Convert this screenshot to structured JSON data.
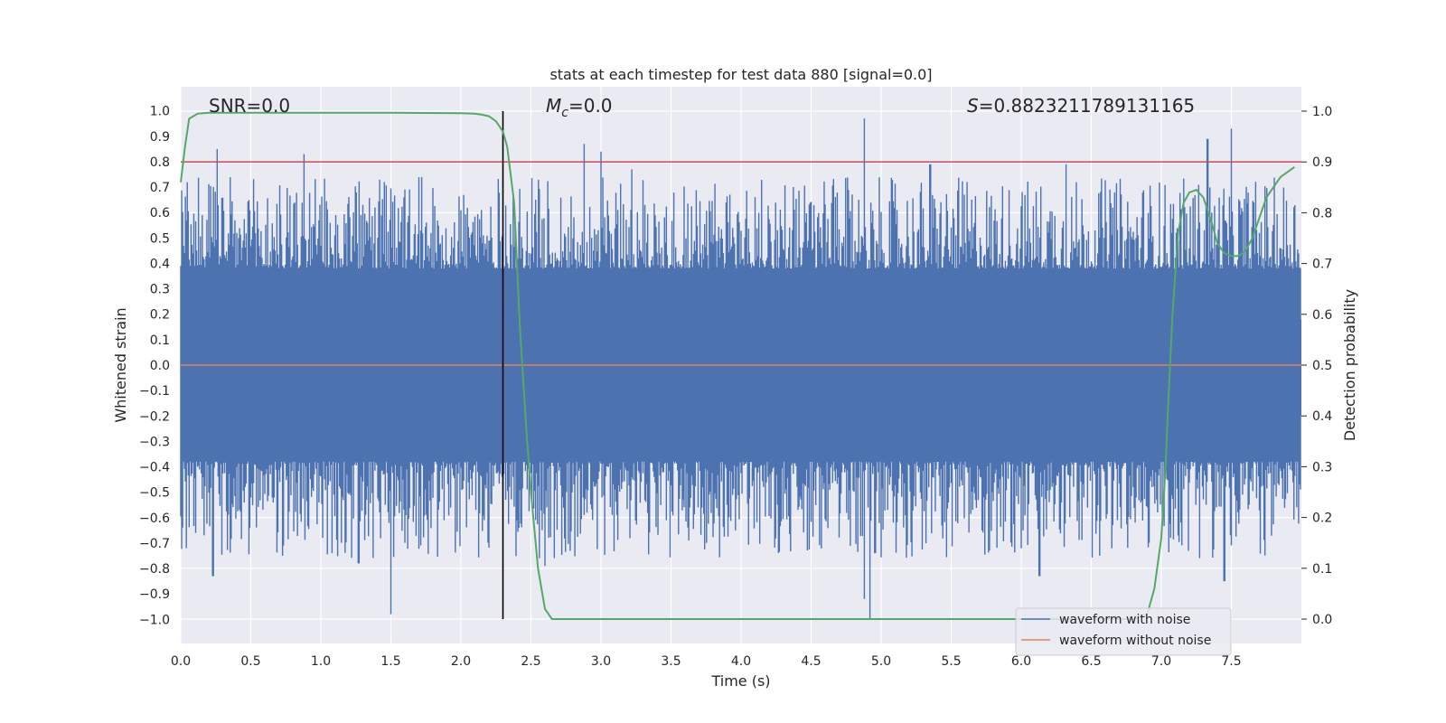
{
  "chart_data": {
    "type": "line",
    "title": "stats at each timestep for test data 880 [signal=0.0]",
    "xlabel": "Time (s)",
    "ylabel": "Whitened strain",
    "y2label": "Detection probability",
    "xlim": [
      0.0,
      8.0
    ],
    "ylim": [
      -1.095,
      1.095
    ],
    "y2lim": [
      -0.048,
      1.048
    ],
    "x_ticks": [
      "0.0",
      "0.5",
      "1.0",
      "1.5",
      "2.0",
      "2.5",
      "3.0",
      "3.5",
      "4.0",
      "4.5",
      "5.0",
      "5.5",
      "6.0",
      "6.5",
      "7.0",
      "7.5"
    ],
    "y_ticks": [
      "1.0",
      "0.9",
      "0.8",
      "0.7",
      "0.6",
      "0.5",
      "0.4",
      "0.3",
      "0.2",
      "0.1",
      "0.0",
      "−0.1",
      "−0.2",
      "−0.3",
      "−0.4",
      "−0.5",
      "−0.6",
      "−0.7",
      "−0.8",
      "−0.9",
      "−1.0"
    ],
    "y2_ticks": [
      "1.0",
      "0.9",
      "0.8",
      "0.7",
      "0.6",
      "0.5",
      "0.4",
      "0.3",
      "0.2",
      "0.1",
      "0.0"
    ],
    "grid": true,
    "legend_position": "lower-right",
    "annotations": {
      "snr": "SNR=0.0",
      "mc_symbol": "M",
      "mc_sub": "c",
      "mc_value": "=0.0",
      "s_symbol": "S",
      "s_value": "=0.8823211789131165"
    },
    "marker_time": 2.3,
    "threshold": 0.9,
    "series": [
      {
        "name": "waveform with noise",
        "color": "#4c72b0",
        "envelope": {
          "noise_floor": 0.38,
          "tall_peaks": [
            [
              0.26,
              0.85
            ],
            [
              0.88,
              0.83
            ],
            [
              2.88,
              0.87
            ],
            [
              3.0,
              0.84
            ],
            [
              4.88,
              0.97
            ],
            [
              7.33,
              0.89
            ],
            [
              7.5,
              0.93
            ],
            [
              3.22,
              0.77
            ],
            [
              5.35,
              0.79
            ],
            [
              6.32,
              0.79
            ]
          ],
          "deep_troughs": [
            [
              1.5,
              -0.98
            ],
            [
              4.92,
              -1.0
            ],
            [
              4.88,
              -0.92
            ],
            [
              0.23,
              -0.83
            ],
            [
              6.13,
              -0.83
            ],
            [
              7.45,
              -0.85
            ],
            [
              2.6,
              -0.79
            ],
            [
              1.27,
              -0.78
            ]
          ]
        }
      },
      {
        "name": "waveform without noise",
        "color": "#dd8452",
        "value": 0.0
      },
      {
        "name": "detection probability",
        "color": "#55a868",
        "axis": "right",
        "x": [
          0.0,
          0.03,
          0.06,
          0.12,
          0.2,
          0.5,
          1.0,
          1.5,
          2.0,
          2.1,
          2.15,
          2.2,
          2.25,
          2.3,
          2.33,
          2.38,
          2.42,
          2.47,
          2.5,
          2.55,
          2.6,
          2.65,
          2.7,
          3.0,
          4.0,
          5.0,
          6.0,
          6.5,
          6.8,
          6.9,
          6.95,
          7.0,
          7.03,
          7.05,
          7.08,
          7.12,
          7.16,
          7.2,
          7.25,
          7.3,
          7.35,
          7.4,
          7.45,
          7.5,
          7.55,
          7.6,
          7.65,
          7.7,
          7.75,
          7.8,
          7.85,
          7.9,
          7.95
        ],
        "y": [
          0.86,
          0.93,
          0.985,
          0.995,
          0.997,
          0.997,
          0.997,
          0.997,
          0.996,
          0.995,
          0.993,
          0.99,
          0.98,
          0.96,
          0.93,
          0.82,
          0.58,
          0.36,
          0.25,
          0.1,
          0.02,
          0.0,
          0.0,
          0.0,
          0.0,
          0.0,
          0.0,
          0.0,
          0.0,
          0.01,
          0.06,
          0.16,
          0.3,
          0.43,
          0.6,
          0.76,
          0.82,
          0.84,
          0.845,
          0.83,
          0.79,
          0.74,
          0.72,
          0.715,
          0.715,
          0.725,
          0.75,
          0.79,
          0.83,
          0.85,
          0.87,
          0.88,
          0.89
        ]
      },
      {
        "name": "threshold",
        "color": "#c44e52",
        "axis": "right",
        "value": 0.9
      }
    ]
  }
}
